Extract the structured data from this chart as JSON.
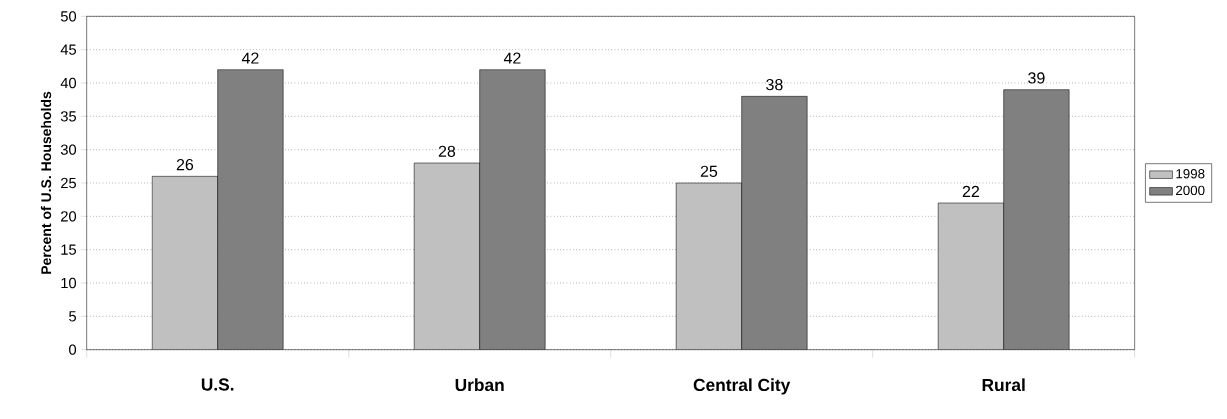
{
  "chart_data": {
    "type": "bar",
    "ylabel": "Percent of U.S. Households",
    "categories": [
      "U.S.",
      "Urban",
      "Central City",
      "Rural"
    ],
    "series": [
      {
        "name": "1998",
        "color": "#c0c0c0",
        "values": [
          26,
          28,
          25,
          22
        ]
      },
      {
        "name": "2000",
        "color": "#808080",
        "values": [
          42,
          42,
          38,
          39
        ]
      }
    ],
    "ylim": [
      0,
      50
    ],
    "yticks": [
      0,
      5,
      10,
      15,
      20,
      25,
      30,
      35,
      40,
      45,
      50
    ],
    "grid": "y",
    "legend": "right",
    "data_labels": true
  }
}
